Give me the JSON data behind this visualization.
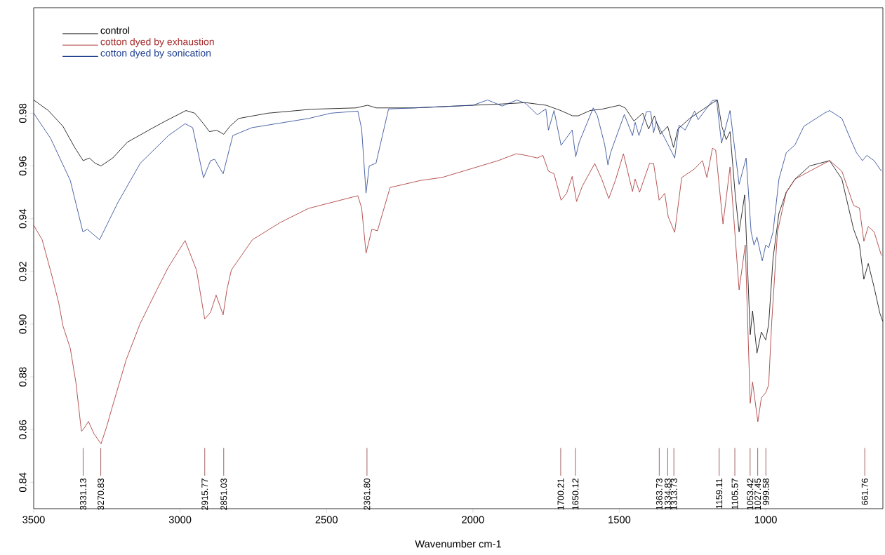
{
  "chart_data": {
    "type": "line",
    "xlabel": "Wavenumber cm-1",
    "xlim": [
      3500,
      600
    ],
    "ylim": [
      0.83,
      1.02
    ],
    "xticks": [
      3500,
      3000,
      2500,
      2000,
      1500,
      1000
    ],
    "yticks": [
      0.84,
      0.86,
      0.88,
      {
        "value": 0.9,
        "label": "0.90"
      },
      0.92,
      0.94,
      0.96,
      0.98
    ],
    "legend": "top left",
    "grid": false,
    "series": [
      {
        "name": "control",
        "color": "#000000",
        "x": [
          3500,
          3450,
          3400,
          3360,
          3331,
          3310,
          3290,
          3270,
          3230,
          3180,
          3100,
          3050,
          2980,
          2950,
          2920,
          2900,
          2875,
          2851,
          2830,
          2800,
          2700,
          2550,
          2400,
          2360,
          2330,
          2200,
          2100,
          2000,
          1900,
          1820,
          1750,
          1700,
          1660,
          1640,
          1600,
          1560,
          1500,
          1480,
          1450,
          1420,
          1400,
          1380,
          1360,
          1335,
          1315,
          1300,
          1260,
          1220,
          1180,
          1165,
          1150,
          1135,
          1122,
          1105,
          1091,
          1072,
          1053,
          1045,
          1030,
          1015,
          1000,
          990,
          975,
          955,
          930,
          900,
          850,
          782,
          740,
          700,
          680,
          665,
          650,
          630,
          610,
          600
        ],
        "values": [
          0.985,
          0.981,
          0.975,
          0.967,
          0.962,
          0.963,
          0.961,
          0.96,
          0.963,
          0.969,
          0.974,
          0.977,
          0.981,
          0.98,
          0.976,
          0.973,
          0.9735,
          0.972,
          0.975,
          0.978,
          0.98,
          0.9815,
          0.982,
          0.983,
          0.982,
          0.982,
          0.9825,
          0.983,
          0.9835,
          0.984,
          0.983,
          0.981,
          0.979,
          0.979,
          0.981,
          0.9815,
          0.983,
          0.982,
          0.977,
          0.98,
          0.974,
          0.979,
          0.972,
          0.975,
          0.967,
          0.974,
          0.978,
          0.981,
          0.984,
          0.985,
          0.975,
          0.97,
          0.973,
          0.95,
          0.935,
          0.949,
          0.896,
          0.905,
          0.889,
          0.897,
          0.894,
          0.9,
          0.925,
          0.942,
          0.95,
          0.955,
          0.96,
          0.962,
          0.955,
          0.936,
          0.93,
          0.917,
          0.923,
          0.914,
          0.904,
          0.901
        ]
      },
      {
        "name": "cotton dyed by exhaustion",
        "color": "#a52a2a",
        "x": [
          3500,
          3471,
          3438,
          3414,
          3400,
          3375,
          3356,
          3337,
          3331,
          3313,
          3294,
          3270,
          3251,
          3232,
          3184,
          3136,
          3079,
          3040,
          2983,
          2944,
          2916,
          2896,
          2877,
          2853,
          2840,
          2825,
          2753,
          2657,
          2561,
          2393,
          2380,
          2365,
          2345,
          2326,
          2283,
          2178,
          2106,
          2010,
          1914,
          1852,
          1819,
          1780,
          1761,
          1742,
          1723,
          1699,
          1680,
          1661,
          1646,
          1627,
          1584,
          1560,
          1536,
          1512,
          1486,
          1455,
          1446,
          1431,
          1397,
          1383,
          1364,
          1345,
          1333,
          1311,
          1287,
          1244,
          1216,
          1201,
          1182,
          1171,
          1146,
          1122,
          1091,
          1070,
          1053,
          1045,
          1027,
          1015,
          1000,
          990,
          980,
          960,
          930,
          900,
          850,
          782,
          740,
          700,
          680,
          665,
          650,
          630,
          605
        ],
        "values": [
          0.9375,
          0.932,
          0.9184,
          0.9078,
          0.8993,
          0.8908,
          0.878,
          0.8594,
          0.86,
          0.8631,
          0.8584,
          0.8546,
          0.861,
          0.8684,
          0.8865,
          0.9003,
          0.9131,
          0.9216,
          0.9317,
          0.9205,
          0.9019,
          0.9045,
          0.911,
          0.9035,
          0.9131,
          0.9205,
          0.932,
          0.9386,
          0.9439,
          0.9487,
          0.944,
          0.9269,
          0.936,
          0.9354,
          0.9518,
          0.9545,
          0.9556,
          0.9588,
          0.962,
          0.9646,
          0.964,
          0.963,
          0.964,
          0.958,
          0.957,
          0.947,
          0.9496,
          0.956,
          0.9465,
          0.9522,
          0.9609,
          0.955,
          0.9476,
          0.955,
          0.9646,
          0.9503,
          0.955,
          0.95,
          0.9609,
          0.9609,
          0.947,
          0.9496,
          0.9407,
          0.9348,
          0.9556,
          0.9588,
          0.962,
          0.9556,
          0.9667,
          0.966,
          0.938,
          0.9596,
          0.913,
          0.93,
          0.87,
          0.878,
          0.863,
          0.872,
          0.874,
          0.877,
          0.9,
          0.935,
          0.95,
          0.955,
          0.958,
          0.962,
          0.958,
          0.945,
          0.944,
          0.9314,
          0.937,
          0.935,
          0.926
        ]
      },
      {
        "name": "cotton dyed by sonication",
        "color": "#1f3f8f",
        "x": [
          3500,
          3442,
          3375,
          3332,
          3317,
          3275,
          3213,
          3136,
          3040,
          2983,
          2957,
          2920,
          2896,
          2882,
          2853,
          2820,
          2755,
          2561,
          2485,
          2393,
          2380,
          2365,
          2354,
          2331,
          2288,
          2200,
          2100,
          2000,
          1950,
          1900,
          1850,
          1820,
          1780,
          1751,
          1742,
          1723,
          1699,
          1661,
          1649,
          1637,
          1589,
          1575,
          1550,
          1539,
          1530,
          1483,
          1455,
          1446,
          1433,
          1407,
          1393,
          1383,
          1374,
          1330,
          1311,
          1296,
          1275,
          1243,
          1231,
          1182,
          1168,
          1151,
          1122,
          1091,
          1067,
          1050,
          1040,
          1030,
          1012,
          1000,
          990,
          975,
          955,
          930,
          900,
          870,
          800,
          782,
          740,
          710,
          690,
          670,
          655,
          630,
          605
        ],
        "values": [
          0.98,
          0.9704,
          0.9545,
          0.935,
          0.936,
          0.932,
          0.946,
          0.961,
          0.9715,
          0.976,
          0.9745,
          0.9555,
          0.962,
          0.9625,
          0.957,
          0.9715,
          0.9745,
          0.978,
          0.98,
          0.9808,
          0.974,
          0.9497,
          0.96,
          0.961,
          0.9816,
          0.982,
          0.9825,
          0.983,
          0.985,
          0.9827,
          0.985,
          0.9837,
          0.9794,
          0.9816,
          0.9736,
          0.981,
          0.9678,
          0.9736,
          0.9635,
          0.969,
          0.982,
          0.979,
          0.968,
          0.9604,
          0.965,
          0.9795,
          0.9715,
          0.9765,
          0.9715,
          0.9806,
          0.9806,
          0.9726,
          0.9768,
          0.9673,
          0.963,
          0.9754,
          0.9736,
          0.9808,
          0.9775,
          0.9848,
          0.985,
          0.9686,
          0.981,
          0.953,
          0.963,
          0.935,
          0.93,
          0.933,
          0.924,
          0.93,
          0.929,
          0.935,
          0.955,
          0.965,
          0.968,
          0.975,
          0.98,
          0.981,
          0.978,
          0.97,
          0.965,
          0.962,
          0.964,
          0.962,
          0.958
        ]
      }
    ],
    "annotations": [
      {
        "text": "3331.13",
        "x": 3331.13
      },
      {
        "text": "3270.83",
        "x": 3270.83
      },
      {
        "text": "2915.77",
        "x": 2915.77
      },
      {
        "text": "2851.03",
        "x": 2851.03
      },
      {
        "text": "2361.80",
        "x": 2361.8
      },
      {
        "text": "1700.21",
        "x": 1700.21
      },
      {
        "text": "1650.12",
        "x": 1650.12
      },
      {
        "text": "1363.73",
        "x": 1363.73
      },
      {
        "text": "1334.83",
        "x": 1334.83
      },
      {
        "text": "1313.73",
        "x": 1313.73
      },
      {
        "text": "1159.11",
        "x": 1159.11
      },
      {
        "text": "1105.57",
        "x": 1105.57
      },
      {
        "text": "1053.42",
        "x": 1053.42
      },
      {
        "text": "1027.45",
        "x": 1027.45
      },
      {
        "text": "999.58",
        "x": 999.58
      },
      {
        "text": "661.76",
        "x": 661.76
      }
    ]
  }
}
